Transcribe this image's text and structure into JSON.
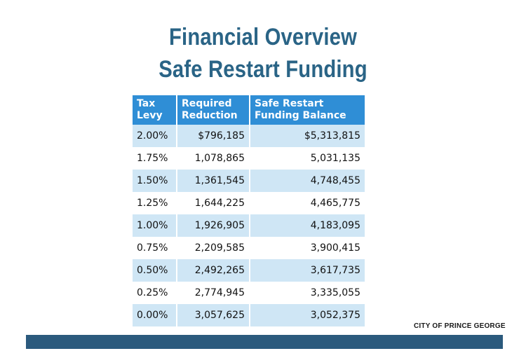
{
  "title_line1": "Financial Overview",
  "title_line2": "Safe Restart Funding",
  "table": {
    "headers": [
      "Tax Levy",
      "Required Reduction",
      "Safe Restart Funding Balance"
    ],
    "rows": [
      [
        "2.00%",
        "$796,185",
        "$5,313,815"
      ],
      [
        "1.75%",
        "1,078,865",
        "5,031,135"
      ],
      [
        "1.50%",
        "1,361,545",
        "4,748,455"
      ],
      [
        "1.25%",
        "1,644,225",
        "4,465,775"
      ],
      [
        "1.00%",
        "1,926,905",
        "4,183,095"
      ],
      [
        "0.75%",
        "2,209,585",
        "3,900,415"
      ],
      [
        "0.50%",
        "2,492,265",
        "3,617,735"
      ],
      [
        "0.25%",
        "2,774,945",
        "3,335,055"
      ],
      [
        "0.00%",
        "3,057,625",
        "3,052,375"
      ]
    ]
  },
  "footer": {
    "org": "CITY OF PRINCE GEORGE"
  },
  "colors": {
    "title": "#2a6486",
    "header_bg": "#2f8ed6",
    "row_shade": "#cfe6f5",
    "footer_bar": "#2b5a7d"
  }
}
